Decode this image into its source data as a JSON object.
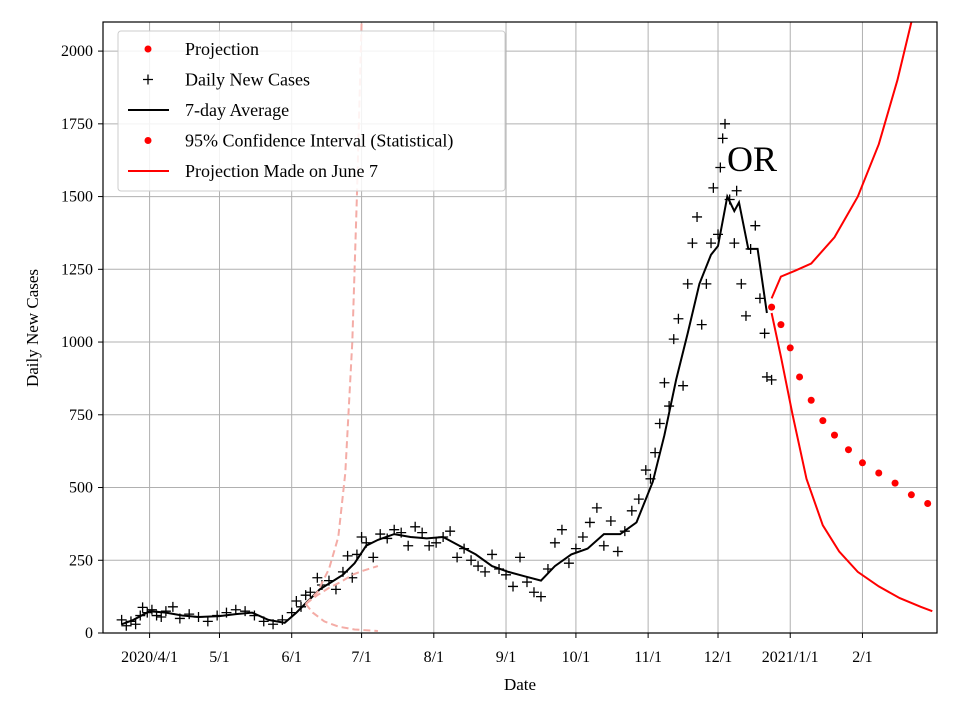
{
  "chart_data": {
    "type": "scatter",
    "title": "",
    "xlabel": "Date",
    "ylabel": "Daily New Cases",
    "annotation": "OR",
    "grid": true,
    "legend_position": "top-left",
    "xlim": [
      "2020-03-12",
      "2021-03-05"
    ],
    "ylim": [
      0,
      2100
    ],
    "x_ticks": [
      {
        "date": "2020-04-01",
        "label": "2020/4/1"
      },
      {
        "date": "2020-05-01",
        "label": "5/1"
      },
      {
        "date": "2020-06-01",
        "label": "6/1"
      },
      {
        "date": "2020-07-01",
        "label": "7/1"
      },
      {
        "date": "2020-08-01",
        "label": "8/1"
      },
      {
        "date": "2020-09-01",
        "label": "9/1"
      },
      {
        "date": "2020-10-01",
        "label": "10/1"
      },
      {
        "date": "2020-11-01",
        "label": "11/1"
      },
      {
        "date": "2020-12-01",
        "label": "12/1"
      },
      {
        "date": "2021-01-01",
        "label": "2021/1/1"
      },
      {
        "date": "2021-02-01",
        "label": "2/1"
      }
    ],
    "y_ticks": [
      0,
      250,
      500,
      750,
      1000,
      1250,
      1500,
      1750,
      2000
    ],
    "legend": [
      {
        "label": "Projection",
        "marker": "dot",
        "color": "#ff0000"
      },
      {
        "label": "Daily New Cases",
        "marker": "plus",
        "color": "#000000"
      },
      {
        "label": "7-day Average",
        "marker": "line",
        "color": "#000000"
      },
      {
        "label": "95% Confidence Interval (Statistical)",
        "marker": "dot",
        "color": "#ff0000"
      },
      {
        "label": "Projection Made on June 7",
        "marker": "line",
        "color": "#ff0000"
      }
    ],
    "series": [
      {
        "name": "Daily New Cases",
        "style": "plus",
        "color": "#000000",
        "points": [
          [
            "2020-03-20",
            45
          ],
          [
            "2020-03-22",
            25
          ],
          [
            "2020-03-24",
            40
          ],
          [
            "2020-03-26",
            30
          ],
          [
            "2020-03-28",
            60
          ],
          [
            "2020-03-29",
            88
          ],
          [
            "2020-03-31",
            70
          ],
          [
            "2020-04-02",
            80
          ],
          [
            "2020-04-04",
            60
          ],
          [
            "2020-04-06",
            55
          ],
          [
            "2020-04-08",
            75
          ],
          [
            "2020-04-11",
            90
          ],
          [
            "2020-04-14",
            50
          ],
          [
            "2020-04-18",
            65
          ],
          [
            "2020-04-22",
            55
          ],
          [
            "2020-04-26",
            40
          ],
          [
            "2020-04-30",
            60
          ],
          [
            "2020-05-04",
            70
          ],
          [
            "2020-05-08",
            80
          ],
          [
            "2020-05-12",
            75
          ],
          [
            "2020-05-16",
            60
          ],
          [
            "2020-05-20",
            40
          ],
          [
            "2020-05-24",
            30
          ],
          [
            "2020-05-28",
            45
          ],
          [
            "2020-06-01",
            70
          ],
          [
            "2020-06-03",
            110
          ],
          [
            "2020-06-05",
            90
          ],
          [
            "2020-06-07",
            130
          ],
          [
            "2020-06-09",
            140
          ],
          [
            "2020-06-12",
            190
          ],
          [
            "2020-06-14",
            165
          ],
          [
            "2020-06-17",
            180
          ],
          [
            "2020-06-20",
            150
          ],
          [
            "2020-06-23",
            210
          ],
          [
            "2020-06-25",
            265
          ],
          [
            "2020-06-27",
            190
          ],
          [
            "2020-06-29",
            270
          ],
          [
            "2020-07-01",
            330
          ],
          [
            "2020-07-03",
            310
          ],
          [
            "2020-07-06",
            260
          ],
          [
            "2020-07-09",
            340
          ],
          [
            "2020-07-12",
            325
          ],
          [
            "2020-07-15",
            355
          ],
          [
            "2020-07-18",
            345
          ],
          [
            "2020-07-21",
            300
          ],
          [
            "2020-07-24",
            365
          ],
          [
            "2020-07-27",
            345
          ],
          [
            "2020-07-30",
            300
          ],
          [
            "2020-08-02",
            310
          ],
          [
            "2020-08-05",
            330
          ],
          [
            "2020-08-08",
            350
          ],
          [
            "2020-08-11",
            260
          ],
          [
            "2020-08-14",
            290
          ],
          [
            "2020-08-17",
            250
          ],
          [
            "2020-08-20",
            230
          ],
          [
            "2020-08-23",
            210
          ],
          [
            "2020-08-26",
            270
          ],
          [
            "2020-08-29",
            220
          ],
          [
            "2020-09-01",
            200
          ],
          [
            "2020-09-04",
            160
          ],
          [
            "2020-09-07",
            260
          ],
          [
            "2020-09-10",
            175
          ],
          [
            "2020-09-13",
            140
          ],
          [
            "2020-09-16",
            125
          ],
          [
            "2020-09-19",
            220
          ],
          [
            "2020-09-22",
            310
          ],
          [
            "2020-09-25",
            355
          ],
          [
            "2020-09-28",
            240
          ],
          [
            "2020-10-01",
            290
          ],
          [
            "2020-10-04",
            330
          ],
          [
            "2020-10-07",
            380
          ],
          [
            "2020-10-10",
            430
          ],
          [
            "2020-10-13",
            300
          ],
          [
            "2020-10-16",
            385
          ],
          [
            "2020-10-19",
            280
          ],
          [
            "2020-10-22",
            350
          ],
          [
            "2020-10-25",
            420
          ],
          [
            "2020-10-28",
            460
          ],
          [
            "2020-10-31",
            560
          ],
          [
            "2020-11-02",
            530
          ],
          [
            "2020-11-04",
            620
          ],
          [
            "2020-11-06",
            720
          ],
          [
            "2020-11-08",
            860
          ],
          [
            "2020-11-10",
            780
          ],
          [
            "2020-11-12",
            1010
          ],
          [
            "2020-11-14",
            1080
          ],
          [
            "2020-11-16",
            850
          ],
          [
            "2020-11-18",
            1200
          ],
          [
            "2020-11-20",
            1340
          ],
          [
            "2020-11-22",
            1430
          ],
          [
            "2020-11-24",
            1060
          ],
          [
            "2020-11-26",
            1200
          ],
          [
            "2020-11-28",
            1340
          ],
          [
            "2020-11-29",
            1530
          ],
          [
            "2020-12-01",
            1370
          ],
          [
            "2020-12-02",
            1600
          ],
          [
            "2020-12-03",
            1700
          ],
          [
            "2020-12-04",
            1750
          ],
          [
            "2020-12-06",
            1490
          ],
          [
            "2020-12-08",
            1340
          ],
          [
            "2020-12-09",
            1520
          ],
          [
            "2020-12-11",
            1200
          ],
          [
            "2020-12-13",
            1090
          ],
          [
            "2020-12-15",
            1320
          ],
          [
            "2020-12-17",
            1400
          ],
          [
            "2020-12-19",
            1150
          ],
          [
            "2020-12-21",
            1030
          ],
          [
            "2020-12-22",
            880
          ],
          [
            "2020-12-24",
            870
          ]
        ]
      },
      {
        "name": "7-day Average",
        "style": "line",
        "color": "#000000",
        "points": [
          [
            "2020-03-20",
            30
          ],
          [
            "2020-03-25",
            45
          ],
          [
            "2020-04-01",
            75
          ],
          [
            "2020-04-08",
            70
          ],
          [
            "2020-04-15",
            60
          ],
          [
            "2020-04-22",
            55
          ],
          [
            "2020-05-01",
            58
          ],
          [
            "2020-05-08",
            65
          ],
          [
            "2020-05-15",
            70
          ],
          [
            "2020-05-22",
            45
          ],
          [
            "2020-05-29",
            35
          ],
          [
            "2020-06-03",
            70
          ],
          [
            "2020-06-08",
            110
          ],
          [
            "2020-06-13",
            150
          ],
          [
            "2020-06-18",
            175
          ],
          [
            "2020-06-23",
            200
          ],
          [
            "2020-06-28",
            240
          ],
          [
            "2020-07-03",
            300
          ],
          [
            "2020-07-08",
            320
          ],
          [
            "2020-07-15",
            340
          ],
          [
            "2020-07-22",
            330
          ],
          [
            "2020-07-29",
            325
          ],
          [
            "2020-08-05",
            330
          ],
          [
            "2020-08-12",
            300
          ],
          [
            "2020-08-19",
            270
          ],
          [
            "2020-08-26",
            230
          ],
          [
            "2020-09-02",
            210
          ],
          [
            "2020-09-09",
            195
          ],
          [
            "2020-09-16",
            180
          ],
          [
            "2020-09-22",
            230
          ],
          [
            "2020-09-29",
            270
          ],
          [
            "2020-10-06",
            290
          ],
          [
            "2020-10-13",
            340
          ],
          [
            "2020-10-20",
            340
          ],
          [
            "2020-10-27",
            380
          ],
          [
            "2020-11-03",
            520
          ],
          [
            "2020-11-08",
            680
          ],
          [
            "2020-11-13",
            870
          ],
          [
            "2020-11-18",
            1030
          ],
          [
            "2020-11-23",
            1200
          ],
          [
            "2020-11-28",
            1300
          ],
          [
            "2020-12-01",
            1330
          ],
          [
            "2020-12-05",
            1500
          ],
          [
            "2020-12-08",
            1450
          ],
          [
            "2020-12-10",
            1480
          ],
          [
            "2020-12-14",
            1320
          ],
          [
            "2020-12-18",
            1320
          ],
          [
            "2020-12-22",
            1100
          ]
        ]
      },
      {
        "name": "Projection",
        "style": "dot",
        "color": "#ff0000",
        "points": [
          [
            "2020-12-24",
            1120
          ],
          [
            "2020-12-28",
            1060
          ],
          [
            "2021-01-01",
            980
          ],
          [
            "2021-01-05",
            880
          ],
          [
            "2021-01-10",
            800
          ],
          [
            "2021-01-15",
            730
          ],
          [
            "2021-01-20",
            680
          ],
          [
            "2021-01-26",
            630
          ],
          [
            "2021-02-01",
            585
          ],
          [
            "2021-02-08",
            550
          ],
          [
            "2021-02-15",
            515
          ],
          [
            "2021-02-22",
            475
          ],
          [
            "2021-03-01",
            445
          ]
        ]
      },
      {
        "name": "95% Confidence Interval (Statistical)",
        "style": "line",
        "color": "#ff0000",
        "points": [
          [
            "2020-12-24",
            1150
          ],
          [
            "2020-12-28",
            1225
          ],
          [
            "2021-01-03",
            1245
          ],
          [
            "2021-01-10",
            1270
          ],
          [
            "2021-01-20",
            1360
          ],
          [
            "2021-01-30",
            1500
          ],
          [
            "2021-02-08",
            1680
          ],
          [
            "2021-02-16",
            1900
          ],
          [
            "2021-02-22",
            2100
          ]
        ]
      },
      {
        "name": "95% Confidence Interval (Statistical)",
        "style": "line",
        "color": "#ff0000",
        "points": [
          [
            "2020-12-24",
            1100
          ],
          [
            "2020-12-28",
            950
          ],
          [
            "2021-01-02",
            750
          ],
          [
            "2021-01-08",
            530
          ],
          [
            "2021-01-15",
            370
          ],
          [
            "2021-01-22",
            280
          ],
          [
            "2021-01-30",
            210
          ],
          [
            "2021-02-08",
            160
          ],
          [
            "2021-02-17",
            120
          ],
          [
            "2021-02-26",
            90
          ],
          [
            "2021-03-03",
            75
          ]
        ]
      },
      {
        "name": "Projection Made on June 7",
        "style": "dashed",
        "color": "#f4aca6",
        "points": [
          [
            "2020-06-07",
            100
          ],
          [
            "2020-06-12",
            140
          ],
          [
            "2020-06-17",
            220
          ],
          [
            "2020-06-21",
            330
          ],
          [
            "2020-06-24",
            550
          ],
          [
            "2020-06-27",
            1000
          ],
          [
            "2020-06-29",
            1500
          ],
          [
            "2020-07-01",
            2100
          ]
        ]
      },
      {
        "name": "Projection Made on June 7",
        "style": "dashed",
        "color": "#f4aca6",
        "points": [
          [
            "2020-06-07",
            100
          ],
          [
            "2020-06-10",
            70
          ],
          [
            "2020-06-15",
            40
          ],
          [
            "2020-06-21",
            22
          ],
          [
            "2020-06-28",
            12
          ],
          [
            "2020-07-08",
            7
          ]
        ]
      },
      {
        "name": "Projection Made on June 7",
        "style": "dashed",
        "color": "#f4aca6",
        "points": [
          [
            "2020-06-07",
            100
          ],
          [
            "2020-06-12",
            130
          ],
          [
            "2020-06-17",
            155
          ],
          [
            "2020-06-22",
            175
          ],
          [
            "2020-06-27",
            200
          ],
          [
            "2020-07-02",
            215
          ],
          [
            "2020-07-08",
            230
          ]
        ]
      }
    ]
  }
}
